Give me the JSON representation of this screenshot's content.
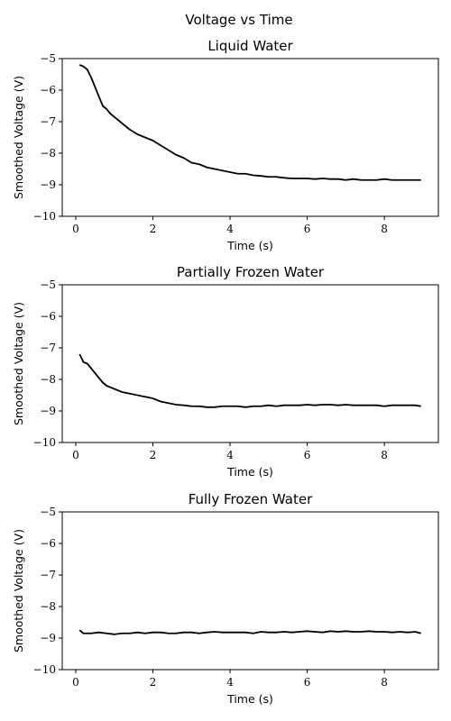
{
  "figure": {
    "suptitle": "Voltage vs Time"
  },
  "chart_data": [
    {
      "type": "line",
      "title": "Liquid Water",
      "xlabel": "Time (s)",
      "ylabel": "Smoothed Voltage (V)",
      "xlim": [
        -0.35,
        9.4
      ],
      "ylim": [
        -10,
        -5
      ],
      "xticks": [
        0,
        2,
        4,
        6,
        8
      ],
      "xtick_labels": [
        "0",
        "2",
        "4",
        "6",
        "8"
      ],
      "yticks": [
        -10,
        -9,
        -8,
        -7,
        -6,
        -5
      ],
      "ytick_labels": [
        "−10",
        "−9",
        "−8",
        "−7",
        "−6",
        "−5"
      ],
      "grid": false,
      "series": [
        {
          "color": "#000000",
          "x": [
            0.1,
            0.2,
            0.3,
            0.4,
            0.5,
            0.6,
            0.7,
            0.8,
            0.9,
            1.0,
            1.2,
            1.4,
            1.6,
            1.8,
            2.0,
            2.2,
            2.4,
            2.6,
            2.8,
            3.0,
            3.2,
            3.4,
            3.6,
            3.8,
            4.0,
            4.2,
            4.4,
            4.6,
            4.8,
            5.0,
            5.2,
            5.4,
            5.6,
            5.8,
            6.0,
            6.2,
            6.4,
            6.6,
            6.8,
            7.0,
            7.2,
            7.4,
            7.6,
            7.8,
            8.0,
            8.2,
            8.4,
            8.6,
            8.8,
            8.95
          ],
          "y": [
            -5.2,
            -5.25,
            -5.35,
            -5.6,
            -5.9,
            -6.2,
            -6.5,
            -6.6,
            -6.75,
            -6.85,
            -7.05,
            -7.25,
            -7.4,
            -7.5,
            -7.6,
            -7.75,
            -7.9,
            -8.05,
            -8.15,
            -8.3,
            -8.35,
            -8.45,
            -8.5,
            -8.55,
            -8.6,
            -8.65,
            -8.65,
            -8.7,
            -8.72,
            -8.75,
            -8.75,
            -8.78,
            -8.8,
            -8.8,
            -8.8,
            -8.82,
            -8.8,
            -8.82,
            -8.82,
            -8.85,
            -8.82,
            -8.85,
            -8.85,
            -8.85,
            -8.82,
            -8.85,
            -8.85,
            -8.85,
            -8.85,
            -8.85
          ]
        }
      ]
    },
    {
      "type": "line",
      "title": "Partially Frozen Water",
      "xlabel": "Time (s)",
      "ylabel": "Smoothed Voltage (V)",
      "xlim": [
        -0.35,
        9.4
      ],
      "ylim": [
        -10,
        -5
      ],
      "xticks": [
        0,
        2,
        4,
        6,
        8
      ],
      "xtick_labels": [
        "0",
        "2",
        "4",
        "6",
        "8"
      ],
      "yticks": [
        -10,
        -9,
        -8,
        -7,
        -6,
        -5
      ],
      "ytick_labels": [
        "−10",
        "−9",
        "−8",
        "−7",
        "−6",
        "−5"
      ],
      "grid": false,
      "series": [
        {
          "color": "#000000",
          "x": [
            0.1,
            0.2,
            0.3,
            0.4,
            0.5,
            0.6,
            0.7,
            0.8,
            1.0,
            1.2,
            1.4,
            1.6,
            1.8,
            2.0,
            2.2,
            2.4,
            2.6,
            2.8,
            3.0,
            3.2,
            3.4,
            3.6,
            3.8,
            4.0,
            4.2,
            4.4,
            4.6,
            4.8,
            5.0,
            5.2,
            5.4,
            5.6,
            5.8,
            6.0,
            6.2,
            6.4,
            6.6,
            6.8,
            7.0,
            7.2,
            7.4,
            7.6,
            7.8,
            8.0,
            8.2,
            8.4,
            8.6,
            8.8,
            8.95
          ],
          "y": [
            -7.2,
            -7.45,
            -7.5,
            -7.65,
            -7.8,
            -7.95,
            -8.1,
            -8.2,
            -8.3,
            -8.4,
            -8.45,
            -8.5,
            -8.55,
            -8.6,
            -8.7,
            -8.75,
            -8.8,
            -8.82,
            -8.85,
            -8.85,
            -8.88,
            -8.88,
            -8.85,
            -8.85,
            -8.85,
            -8.88,
            -8.85,
            -8.85,
            -8.82,
            -8.85,
            -8.82,
            -8.82,
            -8.82,
            -8.8,
            -8.82,
            -8.8,
            -8.8,
            -8.82,
            -8.8,
            -8.82,
            -8.82,
            -8.82,
            -8.82,
            -8.85,
            -8.82,
            -8.82,
            -8.82,
            -8.82,
            -8.85
          ]
        }
      ]
    },
    {
      "type": "line",
      "title": "Fully Frozen Water",
      "xlabel": "Time (s)",
      "ylabel": "Smoothed Voltage (V)",
      "xlim": [
        -0.35,
        9.4
      ],
      "ylim": [
        -10,
        -5
      ],
      "xticks": [
        0,
        2,
        4,
        6,
        8
      ],
      "xtick_labels": [
        "0",
        "2",
        "4",
        "6",
        "8"
      ],
      "yticks": [
        -10,
        -9,
        -8,
        -7,
        -6,
        -5
      ],
      "ytick_labels": [
        "−10",
        "−9",
        "−8",
        "−7",
        "−6",
        "−5"
      ],
      "grid": false,
      "series": [
        {
          "color": "#000000",
          "x": [
            0.1,
            0.2,
            0.4,
            0.6,
            0.8,
            1.0,
            1.2,
            1.4,
            1.6,
            1.8,
            2.0,
            2.2,
            2.4,
            2.6,
            2.8,
            3.0,
            3.2,
            3.4,
            3.6,
            3.8,
            4.0,
            4.2,
            4.4,
            4.6,
            4.8,
            5.0,
            5.2,
            5.4,
            5.6,
            5.8,
            6.0,
            6.2,
            6.4,
            6.6,
            6.8,
            7.0,
            7.2,
            7.4,
            7.6,
            7.8,
            8.0,
            8.2,
            8.4,
            8.6,
            8.8,
            8.95
          ],
          "y": [
            -8.75,
            -8.85,
            -8.85,
            -8.82,
            -8.85,
            -8.88,
            -8.85,
            -8.85,
            -8.82,
            -8.85,
            -8.82,
            -8.82,
            -8.85,
            -8.85,
            -8.82,
            -8.82,
            -8.85,
            -8.82,
            -8.8,
            -8.82,
            -8.82,
            -8.82,
            -8.82,
            -8.85,
            -8.8,
            -8.82,
            -8.82,
            -8.8,
            -8.82,
            -8.8,
            -8.78,
            -8.8,
            -8.82,
            -8.78,
            -8.8,
            -8.78,
            -8.8,
            -8.8,
            -8.78,
            -8.8,
            -8.8,
            -8.82,
            -8.8,
            -8.82,
            -8.8,
            -8.85
          ]
        }
      ]
    }
  ]
}
